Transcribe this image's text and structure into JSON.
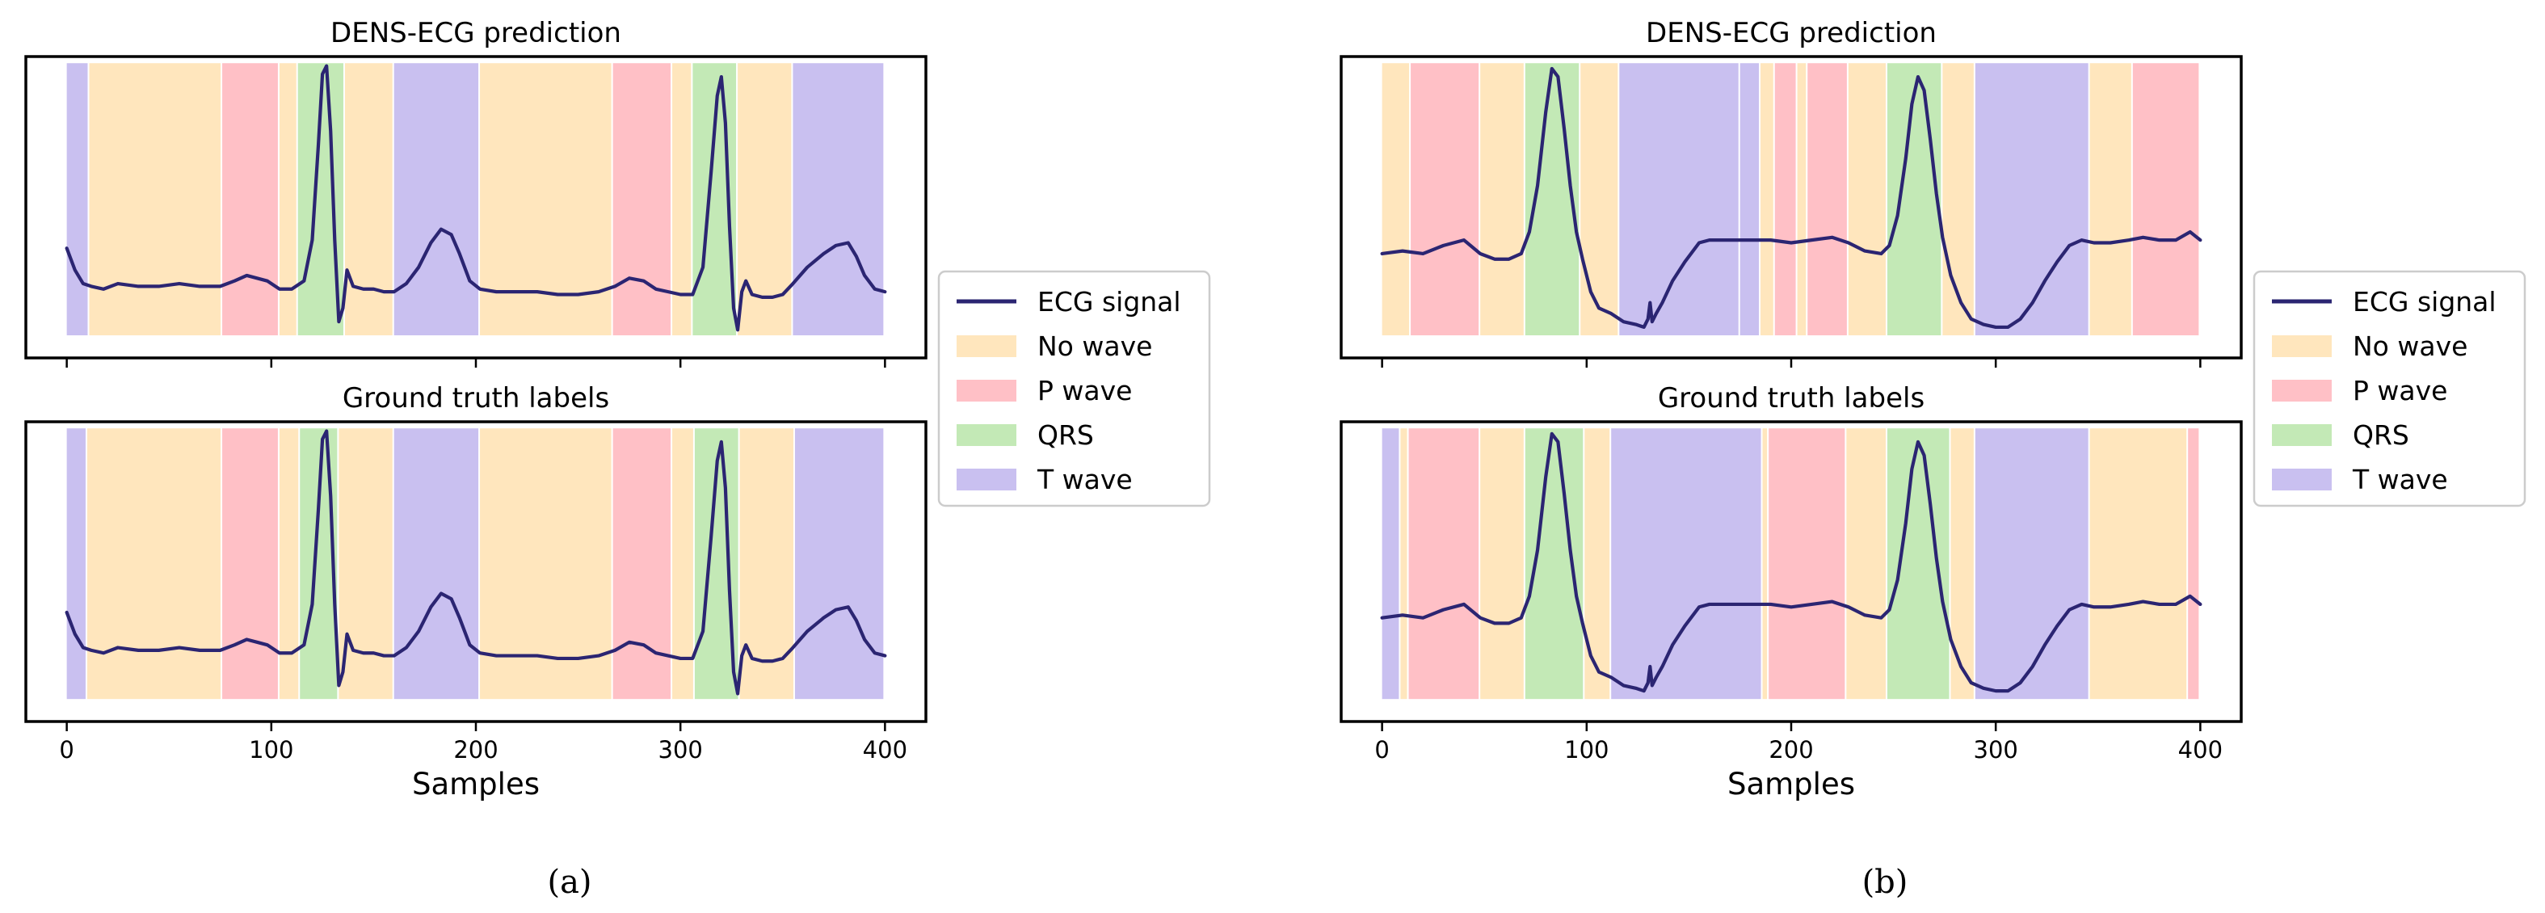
{
  "colors": {
    "signal": "#2b2572",
    "No wave": "#ffe6bd",
    "P wave": "#ffc0c6",
    "QRS": "#c3e9b6",
    "T wave": "#c9c0f0"
  },
  "captions": [
    "(a)",
    "(b)"
  ],
  "chart_data": [
    {
      "type": "line",
      "id": "a-top",
      "title": "DENS-ECG prediction",
      "xlabel": "",
      "xlim": [
        -20,
        420
      ],
      "ylim": [
        0,
        1
      ],
      "xticks": [
        0,
        100,
        200,
        300,
        400
      ],
      "show_tick_labels": false,
      "segments": [
        {
          "start": 0,
          "end": 11,
          "label": "T wave"
        },
        {
          "start": 11,
          "end": 76,
          "label": "No wave"
        },
        {
          "start": 76,
          "end": 104,
          "label": "P wave"
        },
        {
          "start": 104,
          "end": 113,
          "label": "No wave"
        },
        {
          "start": 113,
          "end": 136,
          "label": "QRS"
        },
        {
          "start": 136,
          "end": 160,
          "label": "No wave"
        },
        {
          "start": 160,
          "end": 202,
          "label": "T wave"
        },
        {
          "start": 202,
          "end": 267,
          "label": "No wave"
        },
        {
          "start": 267,
          "end": 296,
          "label": "P wave"
        },
        {
          "start": 296,
          "end": 306,
          "label": "No wave"
        },
        {
          "start": 306,
          "end": 328,
          "label": "QRS"
        },
        {
          "start": 328,
          "end": 355,
          "label": "No wave"
        },
        {
          "start": 355,
          "end": 400,
          "label": "T wave"
        }
      ],
      "signal": {
        "name": "ECG signal",
        "x": [
          0,
          4,
          8,
          12,
          18,
          25,
          35,
          45,
          55,
          65,
          75,
          82,
          88,
          93,
          98,
          104,
          110,
          116,
          120,
          123,
          125,
          127,
          129,
          131,
          133,
          135,
          137,
          140,
          145,
          150,
          155,
          160,
          166,
          172,
          178,
          183,
          188,
          192,
          197,
          202,
          210,
          220,
          230,
          240,
          250,
          260,
          268,
          275,
          282,
          288,
          294,
          300,
          306,
          311,
          315,
          318,
          320,
          322,
          324,
          326,
          328,
          330,
          332,
          335,
          340,
          345,
          350,
          355,
          362,
          370,
          376,
          382,
          386,
          390,
          395,
          400
        ],
        "y": [
          0.32,
          0.24,
          0.19,
          0.18,
          0.17,
          0.19,
          0.18,
          0.18,
          0.19,
          0.18,
          0.18,
          0.2,
          0.22,
          0.21,
          0.2,
          0.17,
          0.17,
          0.2,
          0.35,
          0.7,
          0.96,
          0.99,
          0.75,
          0.35,
          0.05,
          0.1,
          0.24,
          0.18,
          0.17,
          0.17,
          0.16,
          0.16,
          0.19,
          0.25,
          0.34,
          0.39,
          0.37,
          0.3,
          0.2,
          0.17,
          0.16,
          0.16,
          0.16,
          0.15,
          0.15,
          0.16,
          0.18,
          0.21,
          0.2,
          0.17,
          0.16,
          0.15,
          0.15,
          0.25,
          0.6,
          0.88,
          0.95,
          0.78,
          0.4,
          0.1,
          0.02,
          0.16,
          0.2,
          0.15,
          0.14,
          0.14,
          0.15,
          0.19,
          0.25,
          0.3,
          0.33,
          0.34,
          0.29,
          0.22,
          0.17,
          0.16
        ]
      }
    },
    {
      "type": "line",
      "id": "a-bottom",
      "title": "Ground truth labels",
      "xlabel": "Samples",
      "xlim": [
        -20,
        420
      ],
      "ylim": [
        0,
        1
      ],
      "xticks": [
        0,
        100,
        200,
        300,
        400
      ],
      "show_tick_labels": true,
      "segments": [
        {
          "start": 0,
          "end": 10,
          "label": "T wave"
        },
        {
          "start": 10,
          "end": 76,
          "label": "No wave"
        },
        {
          "start": 76,
          "end": 104,
          "label": "P wave"
        },
        {
          "start": 104,
          "end": 114,
          "label": "No wave"
        },
        {
          "start": 114,
          "end": 133,
          "label": "QRS"
        },
        {
          "start": 133,
          "end": 160,
          "label": "No wave"
        },
        {
          "start": 160,
          "end": 202,
          "label": "T wave"
        },
        {
          "start": 202,
          "end": 267,
          "label": "No wave"
        },
        {
          "start": 267,
          "end": 296,
          "label": "P wave"
        },
        {
          "start": 296,
          "end": 307,
          "label": "No wave"
        },
        {
          "start": 307,
          "end": 329,
          "label": "QRS"
        },
        {
          "start": 329,
          "end": 356,
          "label": "No wave"
        },
        {
          "start": 356,
          "end": 400,
          "label": "T wave"
        }
      ],
      "signal": {
        "name": "ECG signal",
        "x": [
          0,
          4,
          8,
          12,
          18,
          25,
          35,
          45,
          55,
          65,
          75,
          82,
          88,
          93,
          98,
          104,
          110,
          116,
          120,
          123,
          125,
          127,
          129,
          131,
          133,
          135,
          137,
          140,
          145,
          150,
          155,
          160,
          166,
          172,
          178,
          183,
          188,
          192,
          197,
          202,
          210,
          220,
          230,
          240,
          250,
          260,
          268,
          275,
          282,
          288,
          294,
          300,
          306,
          311,
          315,
          318,
          320,
          322,
          324,
          326,
          328,
          330,
          332,
          335,
          340,
          345,
          350,
          355,
          362,
          370,
          376,
          382,
          386,
          390,
          395,
          400
        ],
        "y": [
          0.32,
          0.24,
          0.19,
          0.18,
          0.17,
          0.19,
          0.18,
          0.18,
          0.19,
          0.18,
          0.18,
          0.2,
          0.22,
          0.21,
          0.2,
          0.17,
          0.17,
          0.2,
          0.35,
          0.7,
          0.96,
          0.99,
          0.75,
          0.35,
          0.05,
          0.1,
          0.24,
          0.18,
          0.17,
          0.17,
          0.16,
          0.16,
          0.19,
          0.25,
          0.34,
          0.39,
          0.37,
          0.3,
          0.2,
          0.17,
          0.16,
          0.16,
          0.16,
          0.15,
          0.15,
          0.16,
          0.18,
          0.21,
          0.2,
          0.17,
          0.16,
          0.15,
          0.15,
          0.25,
          0.6,
          0.88,
          0.95,
          0.78,
          0.4,
          0.1,
          0.02,
          0.16,
          0.2,
          0.15,
          0.14,
          0.14,
          0.15,
          0.19,
          0.25,
          0.3,
          0.33,
          0.34,
          0.29,
          0.22,
          0.17,
          0.16
        ]
      }
    },
    {
      "type": "line",
      "id": "b-top",
      "title": "DENS-ECG prediction",
      "xlabel": "",
      "xlim": [
        -20,
        420
      ],
      "ylim": [
        0,
        1
      ],
      "xticks": [
        0,
        100,
        200,
        300,
        400
      ],
      "show_tick_labels": false,
      "segments": [
        {
          "start": 0,
          "end": 14,
          "label": "No wave"
        },
        {
          "start": 14,
          "end": 48,
          "label": "P wave"
        },
        {
          "start": 48,
          "end": 70,
          "label": "No wave"
        },
        {
          "start": 70,
          "end": 97,
          "label": "QRS"
        },
        {
          "start": 97,
          "end": 116,
          "label": "No wave"
        },
        {
          "start": 116,
          "end": 175,
          "label": "T wave"
        },
        {
          "start": 175,
          "end": 185,
          "label": "T wave"
        },
        {
          "start": 185,
          "end": 192,
          "label": "No wave"
        },
        {
          "start": 192,
          "end": 203,
          "label": "P wave"
        },
        {
          "start": 203,
          "end": 208,
          "label": "No wave"
        },
        {
          "start": 208,
          "end": 228,
          "label": "P wave"
        },
        {
          "start": 228,
          "end": 247,
          "label": "No wave"
        },
        {
          "start": 247,
          "end": 274,
          "label": "QRS"
        },
        {
          "start": 274,
          "end": 290,
          "label": "No wave"
        },
        {
          "start": 290,
          "end": 346,
          "label": "T wave"
        },
        {
          "start": 346,
          "end": 367,
          "label": "No wave"
        },
        {
          "start": 367,
          "end": 400,
          "label": "P wave"
        }
      ],
      "signal": {
        "name": "ECG signal",
        "x": [
          0,
          10,
          20,
          30,
          40,
          48,
          55,
          62,
          68,
          72,
          76,
          80,
          83,
          86,
          89,
          92,
          95,
          98,
          102,
          106,
          112,
          118,
          124,
          128,
          130,
          131,
          132,
          134,
          137,
          142,
          148,
          155,
          160,
          170,
          180,
          190,
          200,
          210,
          220,
          228,
          236,
          244,
          248,
          252,
          256,
          259,
          262,
          265,
          268,
          271,
          274,
          278,
          283,
          288,
          294,
          300,
          306,
          312,
          318,
          324,
          330,
          336,
          342,
          348,
          356,
          365,
          372,
          380,
          388,
          395,
          400
        ],
        "y": [
          0.3,
          0.31,
          0.3,
          0.33,
          0.35,
          0.3,
          0.28,
          0.28,
          0.3,
          0.38,
          0.55,
          0.82,
          0.98,
          0.95,
          0.76,
          0.55,
          0.38,
          0.28,
          0.16,
          0.1,
          0.08,
          0.05,
          0.04,
          0.03,
          0.06,
          0.12,
          0.05,
          0.08,
          0.12,
          0.2,
          0.27,
          0.34,
          0.35,
          0.35,
          0.35,
          0.35,
          0.34,
          0.35,
          0.36,
          0.34,
          0.31,
          0.3,
          0.33,
          0.44,
          0.65,
          0.85,
          0.95,
          0.9,
          0.72,
          0.52,
          0.36,
          0.22,
          0.12,
          0.06,
          0.04,
          0.03,
          0.03,
          0.06,
          0.12,
          0.2,
          0.27,
          0.33,
          0.35,
          0.34,
          0.34,
          0.35,
          0.36,
          0.35,
          0.35,
          0.38,
          0.35
        ]
      }
    },
    {
      "type": "line",
      "id": "b-bottom",
      "title": "Ground truth labels",
      "xlabel": "Samples",
      "xlim": [
        -20,
        420
      ],
      "ylim": [
        0,
        1
      ],
      "xticks": [
        0,
        100,
        200,
        300,
        400
      ],
      "show_tick_labels": true,
      "segments": [
        {
          "start": 0,
          "end": 9,
          "label": "T wave"
        },
        {
          "start": 9,
          "end": 13,
          "label": "No wave"
        },
        {
          "start": 13,
          "end": 48,
          "label": "P wave"
        },
        {
          "start": 48,
          "end": 70,
          "label": "No wave"
        },
        {
          "start": 70,
          "end": 99,
          "label": "QRS"
        },
        {
          "start": 99,
          "end": 112,
          "label": "No wave"
        },
        {
          "start": 112,
          "end": 186,
          "label": "T wave"
        },
        {
          "start": 186,
          "end": 189,
          "label": "No wave"
        },
        {
          "start": 189,
          "end": 227,
          "label": "P wave"
        },
        {
          "start": 227,
          "end": 247,
          "label": "No wave"
        },
        {
          "start": 247,
          "end": 278,
          "label": "QRS"
        },
        {
          "start": 278,
          "end": 290,
          "label": "No wave"
        },
        {
          "start": 290,
          "end": 346,
          "label": "T wave"
        },
        {
          "start": 346,
          "end": 394,
          "label": "No wave"
        },
        {
          "start": 394,
          "end": 400,
          "label": "P wave"
        }
      ],
      "signal": {
        "name": "ECG signal",
        "x": [
          0,
          10,
          20,
          30,
          40,
          48,
          55,
          62,
          68,
          72,
          76,
          80,
          83,
          86,
          89,
          92,
          95,
          98,
          102,
          106,
          112,
          118,
          124,
          128,
          130,
          131,
          132,
          134,
          137,
          142,
          148,
          155,
          160,
          170,
          180,
          190,
          200,
          210,
          220,
          228,
          236,
          244,
          248,
          252,
          256,
          259,
          262,
          265,
          268,
          271,
          274,
          278,
          283,
          288,
          294,
          300,
          306,
          312,
          318,
          324,
          330,
          336,
          342,
          348,
          356,
          365,
          372,
          380,
          388,
          395,
          400
        ],
        "y": [
          0.3,
          0.31,
          0.3,
          0.33,
          0.35,
          0.3,
          0.28,
          0.28,
          0.3,
          0.38,
          0.55,
          0.82,
          0.98,
          0.95,
          0.76,
          0.55,
          0.38,
          0.28,
          0.16,
          0.1,
          0.08,
          0.05,
          0.04,
          0.03,
          0.06,
          0.12,
          0.05,
          0.08,
          0.12,
          0.2,
          0.27,
          0.34,
          0.35,
          0.35,
          0.35,
          0.35,
          0.34,
          0.35,
          0.36,
          0.34,
          0.31,
          0.3,
          0.33,
          0.44,
          0.65,
          0.85,
          0.95,
          0.9,
          0.72,
          0.52,
          0.36,
          0.22,
          0.12,
          0.06,
          0.04,
          0.03,
          0.03,
          0.06,
          0.12,
          0.2,
          0.27,
          0.33,
          0.35,
          0.34,
          0.34,
          0.35,
          0.36,
          0.35,
          0.35,
          0.38,
          0.35
        ]
      }
    }
  ],
  "legend": {
    "placement": "right of each figure, vertically centered",
    "entries": [
      {
        "label": "ECG signal",
        "kind": "line",
        "color_key": "signal"
      },
      {
        "label": "No wave",
        "kind": "patch",
        "color_key": "No wave"
      },
      {
        "label": "P wave",
        "kind": "patch",
        "color_key": "P wave"
      },
      {
        "label": "QRS",
        "kind": "patch",
        "color_key": "QRS"
      },
      {
        "label": "T wave",
        "kind": "patch",
        "color_key": "T wave"
      }
    ]
  }
}
